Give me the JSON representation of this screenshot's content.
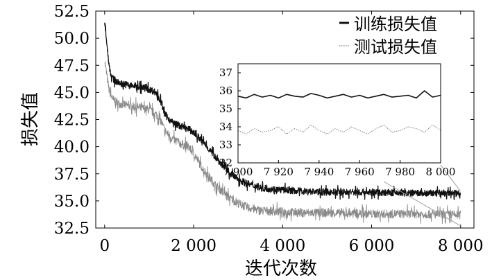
{
  "chart_data": {
    "type": "line",
    "title": "",
    "xlabel": "迭代次数",
    "ylabel": "损失值",
    "xlim": [
      -200,
      8300
    ],
    "ylim": [
      32.5,
      52.5
    ],
    "x_ticks": [
      0,
      2000,
      4000,
      6000,
      8000
    ],
    "x_tick_labels": [
      "0",
      "2 000",
      "4 000",
      "6 000",
      "8 000"
    ],
    "y_ticks": [
      32.5,
      35.0,
      37.5,
      40.0,
      42.5,
      45.0,
      47.5,
      50.0,
      52.5
    ],
    "y_tick_labels": [
      "32.5",
      "35.0",
      "37.5",
      "40.0",
      "42.5",
      "45.0",
      "47.5",
      "50.0",
      "52.5"
    ],
    "legend_position": "top-right",
    "series": [
      {
        "name": "训练损失值",
        "color": "#111111",
        "style": "solid",
        "x": [
          0,
          50,
          100,
          150,
          200,
          300,
          500,
          800,
          1000,
          1150,
          1250,
          1350,
          1500,
          1700,
          1900,
          2000,
          2200,
          2500,
          2800,
          3000,
          3200,
          3500,
          4000,
          4500,
          5000,
          6000,
          7000,
          8000
        ],
        "values": [
          51.6,
          49.5,
          47.5,
          46.5,
          46.2,
          45.9,
          45.7,
          45.5,
          45.3,
          45.0,
          44.3,
          43.0,
          42.3,
          41.9,
          41.6,
          41.3,
          40.5,
          39.0,
          37.6,
          37.0,
          36.6,
          36.2,
          36.0,
          35.9,
          35.8,
          35.8,
          35.7,
          35.7
        ]
      },
      {
        "name": "测试损失值",
        "color": "#8a8a8a",
        "style": "dotted",
        "x": [
          0,
          50,
          100,
          150,
          200,
          300,
          500,
          800,
          1000,
          1150,
          1250,
          1350,
          1500,
          1700,
          1900,
          2000,
          2200,
          2500,
          2800,
          3000,
          3200,
          3500,
          4000,
          4500,
          5000,
          6000,
          7000,
          8000
        ],
        "values": [
          48.0,
          46.5,
          45.2,
          44.6,
          44.3,
          44.0,
          43.8,
          43.6,
          43.4,
          43.0,
          42.5,
          41.5,
          40.8,
          40.3,
          39.9,
          39.4,
          38.0,
          36.4,
          35.3,
          34.8,
          34.4,
          34.1,
          34.0,
          33.9,
          33.9,
          33.8,
          33.8,
          33.7
        ]
      }
    ],
    "inset": {
      "xlim": [
        7900,
        8000
      ],
      "ylim": [
        32,
        37.5
      ],
      "x_ticks": [
        7900,
        7920,
        7940,
        7960,
        7980,
        8000
      ],
      "x_tick_labels": [
        "7 900",
        "7 920",
        "7 940",
        "7 960",
        "7 980",
        "8 000"
      ],
      "y_ticks": [
        32,
        33,
        34,
        35,
        36,
        37
      ],
      "y_tick_labels": [
        "32",
        "33",
        "34",
        "35",
        "36",
        "37"
      ],
      "series": [
        {
          "name": "训练损失值",
          "x": [
            7900,
            7904,
            7908,
            7912,
            7916,
            7920,
            7924,
            7928,
            7932,
            7936,
            7940,
            7944,
            7948,
            7952,
            7956,
            7960,
            7964,
            7968,
            7972,
            7976,
            7980,
            7984,
            7988,
            7992,
            7996,
            8000
          ],
          "values": [
            35.7,
            35.6,
            35.8,
            35.65,
            35.75,
            35.6,
            35.8,
            35.7,
            35.65,
            35.85,
            35.75,
            35.6,
            35.7,
            35.8,
            35.65,
            35.75,
            35.6,
            35.7,
            35.8,
            35.65,
            35.7,
            35.75,
            35.6,
            36.0,
            35.65,
            35.75
          ]
        },
        {
          "name": "测试损失值",
          "x": [
            7900,
            7904,
            7908,
            7912,
            7916,
            7920,
            7924,
            7928,
            7932,
            7936,
            7940,
            7944,
            7948,
            7952,
            7956,
            7960,
            7964,
            7968,
            7972,
            7976,
            7980,
            7984,
            7988,
            7992,
            7996,
            8000
          ],
          "values": [
            33.8,
            33.6,
            33.9,
            33.7,
            33.8,
            34.0,
            33.6,
            33.9,
            33.7,
            34.1,
            33.8,
            33.6,
            33.9,
            33.7,
            34.0,
            33.8,
            33.6,
            33.9,
            34.1,
            33.7,
            33.8,
            34.0,
            33.9,
            33.7,
            34.1,
            33.8
          ]
        }
      ]
    }
  }
}
